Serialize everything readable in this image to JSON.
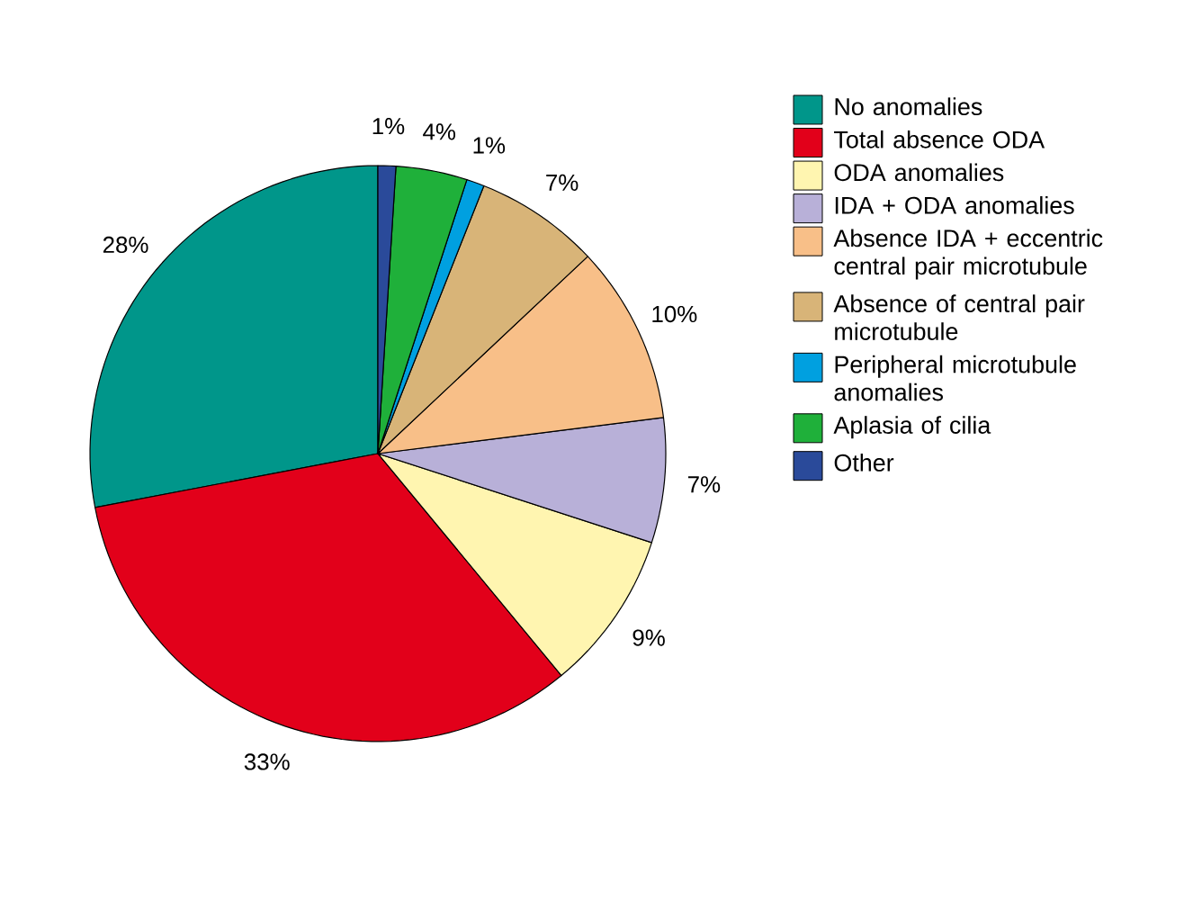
{
  "chart_data": {
    "type": "pie",
    "legend": "right",
    "categories": [
      "No anomalies",
      "Total absence ODA",
      "ODA anomalies",
      "IDA + ODA anomalies",
      "Absence IDA + eccentric central pair microtubule",
      "Absence of central pair microtubule",
      "Peripheral microtubule anomalies",
      "Aplasia of cilia",
      "Other"
    ],
    "values": [
      28,
      33,
      9,
      7,
      10,
      7,
      1,
      4,
      1
    ],
    "value_labels": [
      "28%",
      "33%",
      "9%",
      "7%",
      "10%",
      "7%",
      "1%",
      "4%",
      "1%"
    ],
    "colors": [
      "#00968a",
      "#e2001a",
      "#fff5b0",
      "#b8b0d8",
      "#f8bf88",
      "#d8b478",
      "#00a0e0",
      "#1fb03a",
      "#2a4a9a"
    ]
  }
}
